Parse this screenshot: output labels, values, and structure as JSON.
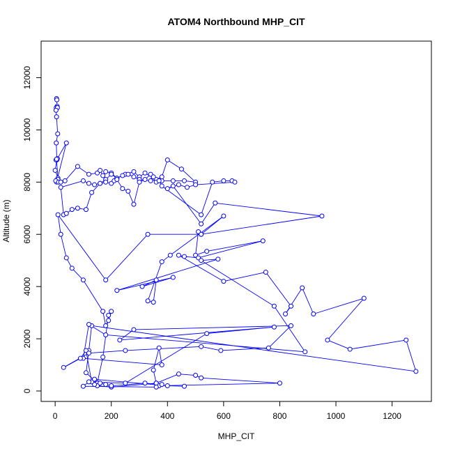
{
  "chart_data": {
    "type": "scatter",
    "title": "ATOM4 Northbound MHP_CIT",
    "xlabel": "MHP_CIT",
    "ylabel": "Altitude (m)",
    "xlim": [
      -50,
      1340
    ],
    "ylim": [
      -400,
      13400
    ],
    "x_ticks": [
      0,
      200,
      400,
      600,
      800,
      1000,
      1200
    ],
    "y_ticks": [
      0,
      2000,
      4000,
      6000,
      8000,
      10000,
      12000
    ],
    "grid": false,
    "legend": "none",
    "style": "points connected by lines (type = b)",
    "series": [
      {
        "color": "#0000ff",
        "x": [
          5,
          6,
          7,
          4,
          8,
          3,
          5,
          9,
          4,
          6,
          0,
          10,
          5,
          40,
          8,
          3,
          5,
          10,
          2,
          12,
          20,
          35,
          80,
          120,
          150,
          160,
          170,
          180,
          200,
          220,
          250,
          280,
          300,
          320,
          350,
          380,
          420,
          460,
          500,
          450,
          400,
          380,
          360,
          340,
          300,
          280,
          260,
          240,
          220,
          200,
          180,
          160,
          140,
          120,
          100,
          20,
          30,
          40,
          60,
          80,
          110,
          130,
          160,
          180,
          200,
          210,
          220,
          240,
          260,
          280,
          300,
          320,
          340,
          350,
          360,
          370,
          380,
          520,
          560,
          600,
          630,
          640,
          500,
          470,
          440,
          400,
          420,
          520,
          570,
          950,
          520,
          510,
          500,
          540,
          740,
          510,
          460,
          440,
          600,
          750,
          840,
          820,
          880,
          920,
          1100,
          970,
          1050,
          1250,
          1285,
          130,
          120,
          110,
          150,
          170,
          190,
          200,
          190,
          180,
          170,
          100,
          60,
          40,
          20,
          10,
          180,
          330,
          520,
          600,
          410,
          380,
          330,
          350,
          360,
          310,
          420,
          220,
          580,
          520,
          780,
          890,
          180,
          120,
          100,
          380,
          370,
          350,
          360,
          370,
          800,
          520,
          500,
          440,
          360,
          200,
          150,
          140,
          130,
          110,
          90,
          30,
          120,
          250,
          520,
          590,
          760,
          840,
          280,
          230,
          780,
          540,
          250,
          120,
          100,
          360,
          380,
          320,
          200,
          180,
          160,
          140,
          400,
          460
        ],
        "y": [
          11200,
          11150,
          10900,
          10850,
          10850,
          10750,
          10500,
          9850,
          9500,
          8850,
          8450,
          8150,
          8000,
          9500,
          8900,
          8850,
          8880,
          8100,
          8050,
          8000,
          8000,
          8050,
          8600,
          8300,
          8350,
          8450,
          8250,
          8400,
          8350,
          8150,
          8300,
          8400,
          8200,
          8350,
          8150,
          8050,
          8050,
          8050,
          8000,
          8500,
          8850,
          8200,
          8100,
          8050,
          8100,
          8200,
          8300,
          8250,
          8150,
          8300,
          8100,
          7950,
          7900,
          7950,
          8050,
          7800,
          6750,
          6800,
          6950,
          7000,
          6950,
          7600,
          7950,
          8000,
          7950,
          8050,
          8100,
          7750,
          7650,
          7150,
          8000,
          8100,
          8300,
          8200,
          8000,
          8050,
          7850,
          6750,
          8000,
          8050,
          8050,
          8000,
          7900,
          7800,
          7900,
          7750,
          7850,
          6400,
          7200,
          6700,
          6000,
          6100,
          5200,
          5350,
          5750,
          5100,
          5150,
          5200,
          4200,
          4550,
          3250,
          2950,
          3950,
          2950,
          3550,
          1950,
          1600,
          1950,
          750,
          2500,
          1550,
          700,
          300,
          1300,
          2900,
          3050,
          2700,
          2500,
          3050,
          4250,
          4700,
          5100,
          6000,
          6750,
          4250,
          6000,
          6000,
          6700,
          5200,
          4950,
          3450,
          3400,
          4250,
          4000,
          4350,
          3850,
          5050,
          5000,
          3250,
          1500,
          2150,
          2550,
          1250,
          1000,
          1650,
          800,
          300,
          200,
          300,
          500,
          600,
          650,
          300,
          150,
          200,
          250,
          350,
          1550,
          1250,
          900,
          1450,
          1550,
          1700,
          1550,
          1650,
          2500,
          2350,
          1950,
          2450,
          2200,
          300,
          350,
          180,
          150,
          250,
          300,
          200,
          250,
          300,
          450,
          200,
          180
        ]
      }
    ]
  }
}
